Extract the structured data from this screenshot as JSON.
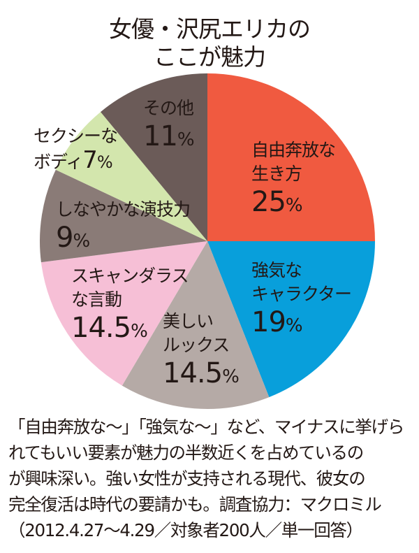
{
  "chart_data": {
    "type": "pie",
    "title_lines": [
      "女優・沢尻エリカの",
      "ここが魅力"
    ],
    "start": "top",
    "direction": "clockwise",
    "slices": [
      {
        "label_lines": [
          "自由奔放な",
          "生き方"
        ],
        "value": 25,
        "value_text": "25",
        "color": "#f05a40"
      },
      {
        "label_lines": [
          "強気な",
          "キャラクター"
        ],
        "value": 19,
        "value_text": "19",
        "color": "#089fdb"
      },
      {
        "label_lines": [
          "美しい",
          "ルックス"
        ],
        "value": 14.5,
        "value_text": "14.5",
        "color": "#b5aaa6"
      },
      {
        "label_lines": [
          "スキャンダラス",
          "な言動"
        ],
        "value": 14.5,
        "value_text": "14.5",
        "color": "#f6bfd6"
      },
      {
        "label_lines": [
          "しなやかな演技力"
        ],
        "value": 9,
        "value_text": "9",
        "color": "#8a7b77"
      },
      {
        "label_lines": [
          "セクシーな",
          "ボディ"
        ],
        "value": 7,
        "value_text": "7",
        "color": "#d3e6ad"
      },
      {
        "label_lines": [
          "その他"
        ],
        "value": 11,
        "value_text": "11",
        "color": "#6b5b58"
      }
    ],
    "unit": "%"
  },
  "note_lines": [
    "「自由奔放な〜」「強気な〜」など、マイナスに挙げら",
    "れてもいい要素が魅力の半数近くを占めているの",
    "が興味深い。強い女性が支持される現代、彼女の",
    "完全復活は時代の要請かも。調査協力：マクロミル",
    "（2012.4.27〜4.29／対象者200人／単一回答）"
  ]
}
